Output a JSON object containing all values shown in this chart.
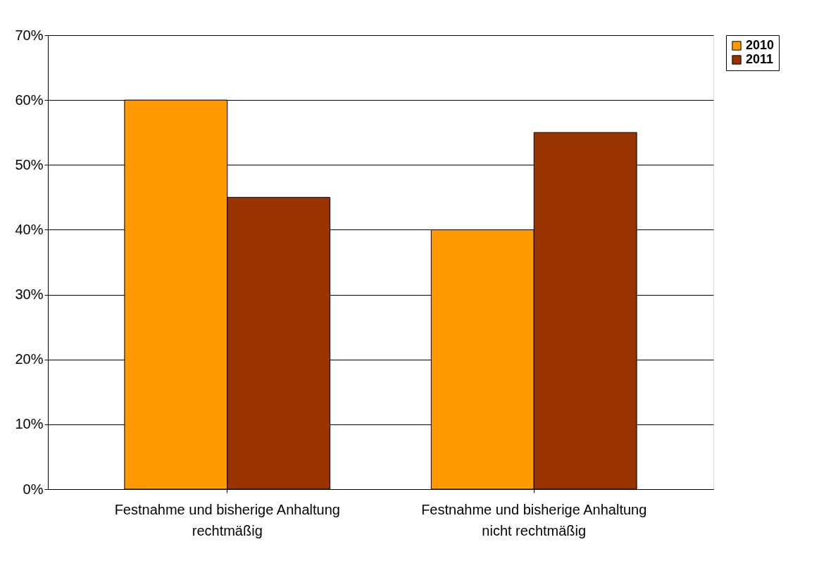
{
  "chart_data": {
    "type": "bar",
    "categories": [
      "Festnahme und bisherige Anhaltung\nrechtmäßig",
      "Festnahme und bisherige Anhaltung\nnicht rechtmäßig"
    ],
    "series": [
      {
        "name": "2010",
        "color": "#ff9900",
        "values": [
          60,
          40
        ]
      },
      {
        "name": "2011",
        "color": "#993300",
        "values": [
          45,
          55
        ]
      }
    ],
    "ylim": [
      0,
      70
    ],
    "yticks": [
      {
        "value": 0,
        "label": "0%"
      },
      {
        "value": 10,
        "label": "10%"
      },
      {
        "value": 20,
        "label": "20%"
      },
      {
        "value": 30,
        "label": "30%"
      },
      {
        "value": 40,
        "label": "40%"
      },
      {
        "value": 50,
        "label": "50%"
      },
      {
        "value": 60,
        "label": "60%"
      },
      {
        "value": 70,
        "label": "70%"
      }
    ],
    "grid": "y",
    "legend": "right"
  }
}
